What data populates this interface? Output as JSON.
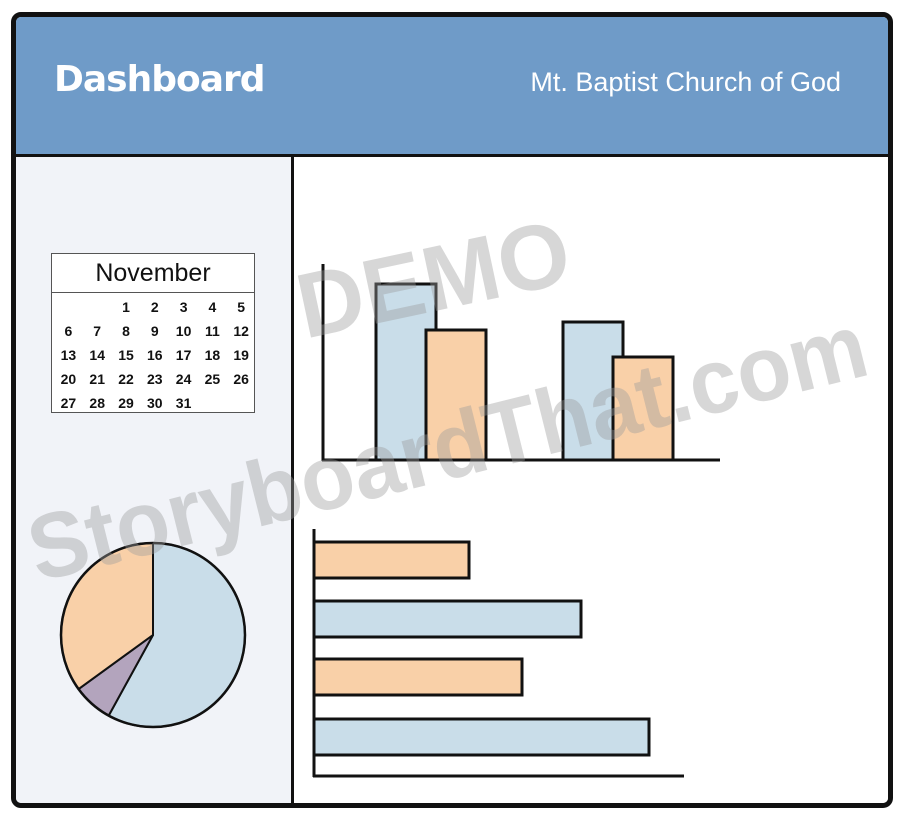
{
  "header": {
    "title": "Dashboard",
    "organization": "Mt. Baptist Church of God"
  },
  "calendar": {
    "month": "November",
    "leading_blank_days": 2,
    "days": [
      "1",
      "2",
      "3",
      "4",
      "5",
      "6",
      "7",
      "8",
      "9",
      "10",
      "11",
      "12",
      "13",
      "14",
      "15",
      "16",
      "17",
      "18",
      "19",
      "20",
      "21",
      "22",
      "23",
      "24",
      "25",
      "26",
      "27",
      "28",
      "29",
      "30",
      "31"
    ]
  },
  "colors": {
    "header_bg": "#6f9bc8",
    "blue": "#c9dde9",
    "orange": "#f9d0a8",
    "purple": "#b3a4bd",
    "sidebar_bg": "#f1f3f8"
  },
  "watermark": {
    "line1": "DEMO",
    "line2": "StoryboardThat.com"
  },
  "chart_data": [
    {
      "type": "bar",
      "orientation": "vertical",
      "categories": [
        "",
        ""
      ],
      "series": [
        {
          "color": "#c9dde9",
          "values": [
            176,
            138
          ]
        },
        {
          "color": "#f9d0a8",
          "values": [
            130,
            103
          ]
        }
      ],
      "ylim": [
        0,
        200
      ]
    },
    {
      "type": "bar",
      "orientation": "horizontal",
      "categories": [
        "",
        "",
        "",
        ""
      ],
      "values": [
        155,
        267,
        208,
        335
      ],
      "colors": [
        "#f9d0a8",
        "#c9dde9",
        "#f9d0a8",
        "#c9dde9"
      ],
      "xlim": [
        0,
        370
      ]
    },
    {
      "type": "pie",
      "values": [
        58,
        7,
        35
      ],
      "colors": [
        "#c9dde9",
        "#b3a4bd",
        "#f9d0a8"
      ]
    }
  ]
}
